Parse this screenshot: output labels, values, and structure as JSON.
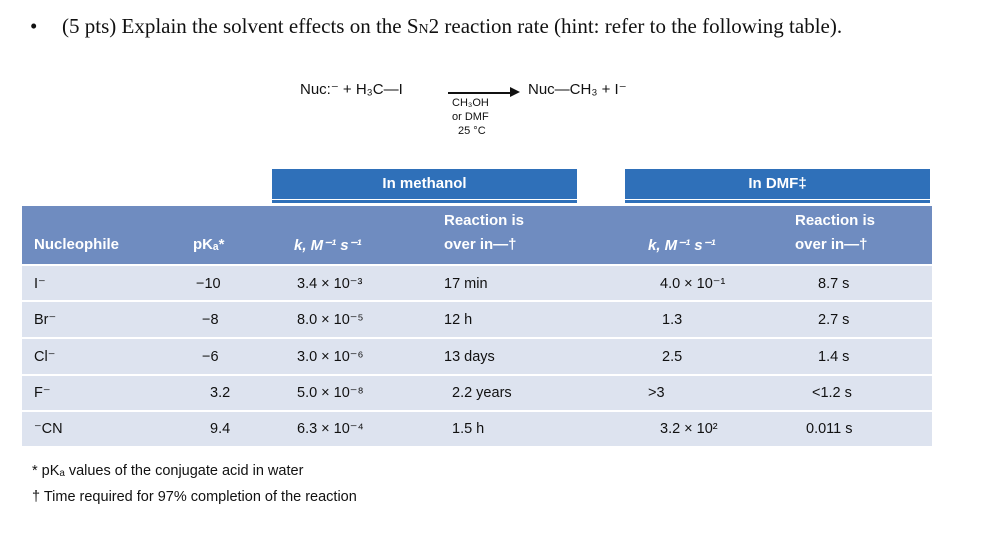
{
  "question": {
    "bullet": "•",
    "text_before": "(5 pts) Explain the solvent effects on the S",
    "subscript": "N",
    "text_after": "2 reaction rate (hint: refer to the following table)."
  },
  "reaction": {
    "reactants": "Nuc:⁻ + H₃C—I",
    "products": "Nuc—CH₃ + I⁻",
    "conditions": [
      "CH₃OH",
      "or DMF",
      "25 °C"
    ]
  },
  "table": {
    "group_headers": {
      "methanol": "In methanol",
      "dmf": "In DMF‡"
    },
    "columns": {
      "nucleophile": "Nucleophile",
      "pka": "pKₐ*",
      "k_methanol": "k, M⁻¹ s⁻¹",
      "time_methanol_1": "Reaction is",
      "time_methanol_2": "over in—†",
      "k_dmf": "k, M⁻¹ s⁻¹",
      "time_dmf_1": "Reaction is",
      "time_dmf_2": "over in—†"
    },
    "rows": [
      {
        "nucleophile": "I⁻",
        "pka": "−10",
        "k_methanol": "3.4 × 10⁻³",
        "time_methanol": "17 min",
        "k_dmf": "4.0 × 10⁻¹",
        "time_dmf": "8.7 s"
      },
      {
        "nucleophile": "Br⁻",
        "pka": "−8",
        "k_methanol": "8.0 × 10⁻⁵",
        "time_methanol": "12 h",
        "k_dmf": "1.3",
        "time_dmf": "2.7 s"
      },
      {
        "nucleophile": "Cl⁻",
        "pka": "−6",
        "k_methanol": "3.0 × 10⁻⁶",
        "time_methanol": "13 days",
        "k_dmf": "2.5",
        "time_dmf": "1.4 s"
      },
      {
        "nucleophile": "F⁻",
        "pka": "3.2",
        "k_methanol": "5.0 × 10⁻⁸",
        "time_methanol": "2.2 years",
        "k_dmf": ">3",
        "time_dmf": "<1.2 s"
      },
      {
        "nucleophile": "⁻CN",
        "pka": "9.4",
        "k_methanol": "6.3 × 10⁻⁴",
        "time_methanol": "1.5 h",
        "k_dmf": "3.2 × 10²",
        "time_dmf": "0.011 s"
      }
    ]
  },
  "footnotes": [
    "* pKₐ values of the conjugate acid in water",
    "† Time required for 97% completion of the reaction"
  ]
}
